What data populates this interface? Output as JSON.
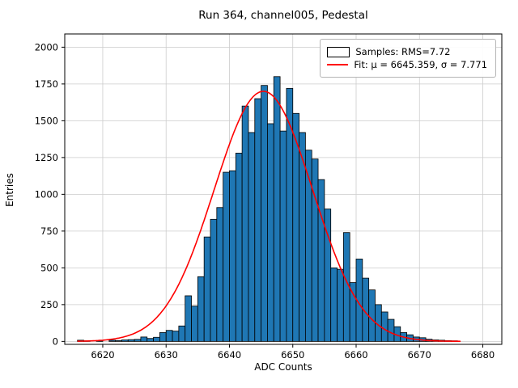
{
  "chart_data": {
    "type": "bar",
    "subtype": "histogram",
    "title": "Run 364, channel005, Pedestal",
    "xlabel": "ADC Counts",
    "ylabel": "Entries",
    "xlim": [
      6614,
      6683
    ],
    "ylim": [
      -20,
      2090
    ],
    "xticks": [
      6620,
      6630,
      6640,
      6650,
      6660,
      6670,
      6680
    ],
    "yticks": [
      0,
      250,
      500,
      750,
      1000,
      1250,
      1500,
      1750,
      2000
    ],
    "grid": true,
    "bin_start": 6616,
    "bin_width": 1,
    "counts": [
      8,
      4,
      0,
      6,
      0,
      8,
      6,
      10,
      12,
      14,
      30,
      20,
      28,
      60,
      75,
      70,
      105,
      310,
      240,
      440,
      710,
      830,
      910,
      1150,
      1160,
      1280,
      1600,
      1420,
      1650,
      1740,
      1480,
      1800,
      1430,
      1720,
      1550,
      1420,
      1300,
      1240,
      1100,
      900,
      500,
      490,
      740,
      400,
      560,
      430,
      350,
      250,
      200,
      150,
      100,
      60,
      45,
      30,
      25,
      15,
      10,
      8,
      5,
      4
    ],
    "bar_color": "#1f77b4",
    "bar_edge_color": "#000000",
    "grid_color": "#cccccc",
    "fit": {
      "mu": 6645.359,
      "sigma": 7.771,
      "amplitude": 1700,
      "color": "#ff0000",
      "x_start": 6616,
      "x_end": 6676.5
    },
    "legend": {
      "position": "upper right",
      "samples_label": "Samples: RMS=7.72",
      "fit_label": "Fit: μ = 6645.359, σ = 7.771"
    }
  }
}
